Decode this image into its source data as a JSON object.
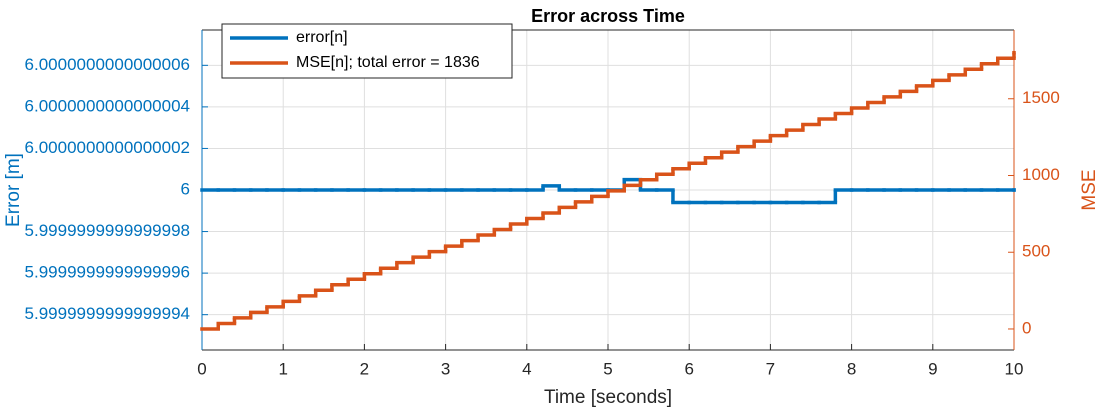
{
  "chart_data": {
    "type": "stairs",
    "title": "Error across Time",
    "xlabel": "Time [seconds]",
    "ylabel": "Error [m]",
    "y2label": "MSE",
    "x": [
      0,
      0.2,
      0.4,
      0.6,
      0.8,
      1,
      1.2,
      1.4,
      1.6,
      1.8,
      2,
      2.2,
      2.4,
      2.6,
      2.8,
      3,
      3.2,
      3.4,
      3.6,
      3.8,
      4,
      4.2,
      4.4,
      4.6,
      4.8,
      5,
      5.2,
      5.4,
      5.6,
      5.8,
      6,
      6.2,
      6.4,
      6.6,
      6.8,
      7,
      7.2,
      7.4,
      7.6,
      7.8,
      8,
      8.2,
      8.4,
      8.6,
      8.8,
      9,
      9.2,
      9.4,
      9.6,
      9.8,
      10
    ],
    "xlim": [
      0,
      10
    ],
    "xticks": [
      0,
      1,
      2,
      3,
      4,
      5,
      6,
      7,
      8,
      9,
      10
    ],
    "ylim": [
      "5.99999999999999923",
      "6.00000000000000077"
    ],
    "yticks": [
      "5.9999999999999994",
      "5.9999999999999996",
      "5.9999999999999998",
      "6",
      "6.0000000000000002",
      "6.0000000000000004",
      "6.0000000000000006"
    ],
    "y2lim": [
      -137,
      1948
    ],
    "y2ticks": [
      0,
      500,
      1000,
      1500
    ],
    "grid": true,
    "legend": "upper left",
    "series": [
      {
        "name": "error[n]",
        "color": "#0072BD",
        "values": [
          "6",
          "6",
          "6",
          "6",
          "6",
          "6",
          "6",
          "6",
          "6",
          "6",
          "6",
          "6",
          "6",
          "6",
          "6",
          "6",
          "6",
          "6",
          "6",
          "6",
          "6",
          "6.00000000000000002",
          "6",
          "6",
          "6",
          "6",
          "6.00000000000000005",
          "6",
          "6",
          "5.99999999999999994",
          "5.99999999999999994",
          "5.99999999999999994",
          "5.99999999999999994",
          "5.99999999999999994",
          "5.99999999999999994",
          "5.99999999999999994",
          "5.99999999999999994",
          "5.99999999999999994",
          "5.99999999999999994",
          "6",
          "6",
          "6",
          "6",
          "6",
          "6",
          "6",
          "6",
          "6",
          "6",
          "6",
          "6"
        ]
      },
      {
        "name": "MSE[n]; total error = 1836",
        "color": "#D95319",
        "axis": "y2",
        "values": [
          0,
          36,
          72,
          108,
          144,
          180,
          216,
          252,
          288,
          324,
          360,
          396,
          432,
          468,
          504,
          540,
          576,
          612,
          648,
          684,
          720,
          756,
          792,
          828,
          864,
          900,
          936,
          972,
          1008,
          1044,
          1080,
          1116,
          1152,
          1188,
          1224,
          1260,
          1296,
          1332,
          1368,
          1404,
          1440,
          1476,
          1512,
          1548,
          1584,
          1620,
          1656,
          1692,
          1728,
          1764,
          1800
        ]
      }
    ]
  }
}
